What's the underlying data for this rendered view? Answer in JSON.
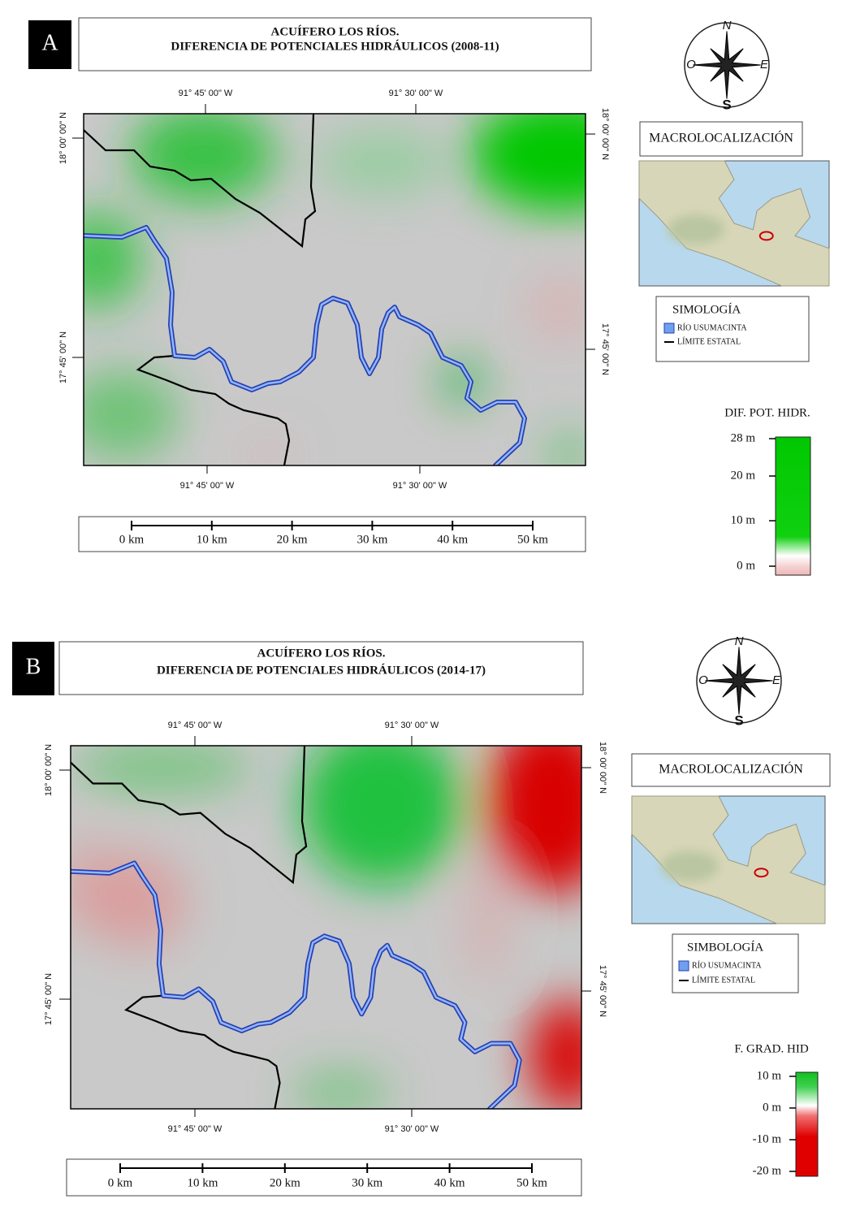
{
  "panels": [
    {
      "label": "A",
      "title": [
        "ACUÍFERO LOS RÍOS.",
        "DIFERENCIA DE POTENCIALES HIDRÁULICOS (2008-11)"
      ],
      "coords": {
        "top": [
          "91° 45' 00\" W",
          "91° 30' 00\" W"
        ],
        "bottom": [
          "91° 45' 00\" W",
          "91° 30' 00\" W"
        ],
        "left": [
          "18° 00' 00\" N",
          "17° 45' 00\" N"
        ],
        "right": [
          "18° 00' 00\" N",
          "17° 45' 00\" N"
        ]
      },
      "scale": [
        "0 km",
        "10 km",
        "20 km",
        "30 km",
        "40 km",
        "50 km"
      ],
      "compass": {
        "n": "N",
        "o": "O",
        "e": "E",
        "s": "S"
      },
      "macro": "MACROLOCALIZACIÓN",
      "legend": {
        "title": "SIMOLOGÍA",
        "items": [
          "RÍO USUMACINTA",
          "LÍMITE ESTATAL"
        ]
      },
      "colorbar": {
        "title": "DIF. POT. HIDR.",
        "ticks": [
          "28 m",
          "20 m",
          "10 m",
          "0 m"
        ]
      }
    },
    {
      "label": "B",
      "title": [
        "ACUÍFERO LOS RÍOS.",
        "DIFERENCIA DE POTENCIALES HIDRÁULICOS (2014-17)"
      ],
      "coords": {
        "top": [
          "91° 45' 00\" W",
          "91° 30' 00\" W"
        ],
        "bottom": [
          "91° 45' 00\" W",
          "91° 30' 00\" W"
        ],
        "left": [
          "18° 00' 00\" N",
          "17° 45' 00\" N"
        ],
        "right": [
          "18° 00' 00\" N",
          "17° 45' 00\" N"
        ]
      },
      "scale": [
        "0 km",
        "10 km",
        "20 km",
        "30 km",
        "40 km",
        "50 km"
      ],
      "compass": {
        "n": "N",
        "o": "O",
        "e": "E",
        "s": "S"
      },
      "macro": "MACROLOCALIZACIÓN",
      "legend": {
        "title": "SIMBOLOGÍA",
        "items": [
          "RÍO USUMACINTA",
          "LÍMITE ESTATAL"
        ]
      },
      "colorbar": {
        "title": "F. GRAD. HID",
        "ticks": [
          "10 m",
          "0 m",
          "-10 m",
          "-20 m"
        ]
      }
    }
  ]
}
